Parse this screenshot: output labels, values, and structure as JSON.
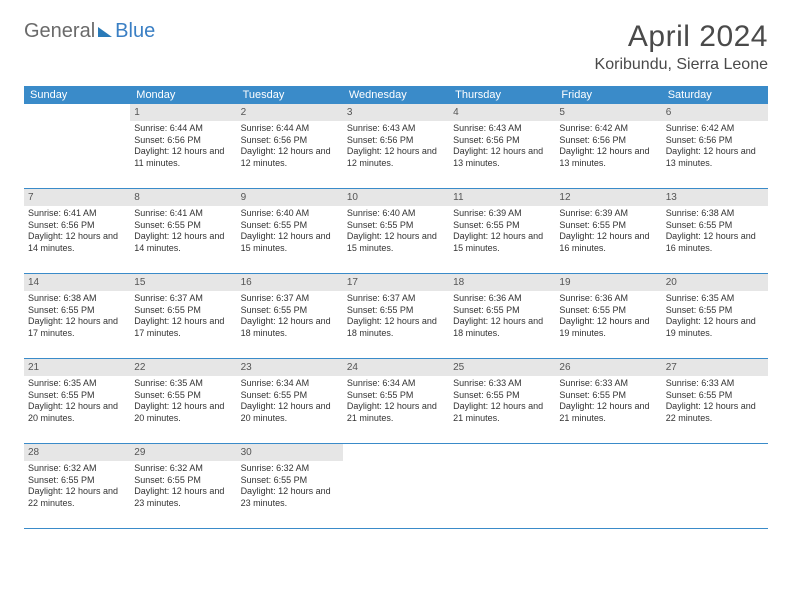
{
  "logo": {
    "text1": "General",
    "text2": "Blue"
  },
  "title": "April 2024",
  "location": "Koribundu, Sierra Leone",
  "colors": {
    "header_bg": "#3a8bc9",
    "header_text": "#ffffff",
    "daynum_bg": "#e6e6e6",
    "border": "#3a8bc9",
    "title_color": "#4a4a4a"
  },
  "weekdays": [
    "Sunday",
    "Monday",
    "Tuesday",
    "Wednesday",
    "Thursday",
    "Friday",
    "Saturday"
  ],
  "weeks": [
    [
      null,
      {
        "n": "1",
        "sr": "Sunrise: 6:44 AM",
        "ss": "Sunset: 6:56 PM",
        "dl": "Daylight: 12 hours and 11 minutes."
      },
      {
        "n": "2",
        "sr": "Sunrise: 6:44 AM",
        "ss": "Sunset: 6:56 PM",
        "dl": "Daylight: 12 hours and 12 minutes."
      },
      {
        "n": "3",
        "sr": "Sunrise: 6:43 AM",
        "ss": "Sunset: 6:56 PM",
        "dl": "Daylight: 12 hours and 12 minutes."
      },
      {
        "n": "4",
        "sr": "Sunrise: 6:43 AM",
        "ss": "Sunset: 6:56 PM",
        "dl": "Daylight: 12 hours and 13 minutes."
      },
      {
        "n": "5",
        "sr": "Sunrise: 6:42 AM",
        "ss": "Sunset: 6:56 PM",
        "dl": "Daylight: 12 hours and 13 minutes."
      },
      {
        "n": "6",
        "sr": "Sunrise: 6:42 AM",
        "ss": "Sunset: 6:56 PM",
        "dl": "Daylight: 12 hours and 13 minutes."
      }
    ],
    [
      {
        "n": "7",
        "sr": "Sunrise: 6:41 AM",
        "ss": "Sunset: 6:56 PM",
        "dl": "Daylight: 12 hours and 14 minutes."
      },
      {
        "n": "8",
        "sr": "Sunrise: 6:41 AM",
        "ss": "Sunset: 6:55 PM",
        "dl": "Daylight: 12 hours and 14 minutes."
      },
      {
        "n": "9",
        "sr": "Sunrise: 6:40 AM",
        "ss": "Sunset: 6:55 PM",
        "dl": "Daylight: 12 hours and 15 minutes."
      },
      {
        "n": "10",
        "sr": "Sunrise: 6:40 AM",
        "ss": "Sunset: 6:55 PM",
        "dl": "Daylight: 12 hours and 15 minutes."
      },
      {
        "n": "11",
        "sr": "Sunrise: 6:39 AM",
        "ss": "Sunset: 6:55 PM",
        "dl": "Daylight: 12 hours and 15 minutes."
      },
      {
        "n": "12",
        "sr": "Sunrise: 6:39 AM",
        "ss": "Sunset: 6:55 PM",
        "dl": "Daylight: 12 hours and 16 minutes."
      },
      {
        "n": "13",
        "sr": "Sunrise: 6:38 AM",
        "ss": "Sunset: 6:55 PM",
        "dl": "Daylight: 12 hours and 16 minutes."
      }
    ],
    [
      {
        "n": "14",
        "sr": "Sunrise: 6:38 AM",
        "ss": "Sunset: 6:55 PM",
        "dl": "Daylight: 12 hours and 17 minutes."
      },
      {
        "n": "15",
        "sr": "Sunrise: 6:37 AM",
        "ss": "Sunset: 6:55 PM",
        "dl": "Daylight: 12 hours and 17 minutes."
      },
      {
        "n": "16",
        "sr": "Sunrise: 6:37 AM",
        "ss": "Sunset: 6:55 PM",
        "dl": "Daylight: 12 hours and 18 minutes."
      },
      {
        "n": "17",
        "sr": "Sunrise: 6:37 AM",
        "ss": "Sunset: 6:55 PM",
        "dl": "Daylight: 12 hours and 18 minutes."
      },
      {
        "n": "18",
        "sr": "Sunrise: 6:36 AM",
        "ss": "Sunset: 6:55 PM",
        "dl": "Daylight: 12 hours and 18 minutes."
      },
      {
        "n": "19",
        "sr": "Sunrise: 6:36 AM",
        "ss": "Sunset: 6:55 PM",
        "dl": "Daylight: 12 hours and 19 minutes."
      },
      {
        "n": "20",
        "sr": "Sunrise: 6:35 AM",
        "ss": "Sunset: 6:55 PM",
        "dl": "Daylight: 12 hours and 19 minutes."
      }
    ],
    [
      {
        "n": "21",
        "sr": "Sunrise: 6:35 AM",
        "ss": "Sunset: 6:55 PM",
        "dl": "Daylight: 12 hours and 20 minutes."
      },
      {
        "n": "22",
        "sr": "Sunrise: 6:35 AM",
        "ss": "Sunset: 6:55 PM",
        "dl": "Daylight: 12 hours and 20 minutes."
      },
      {
        "n": "23",
        "sr": "Sunrise: 6:34 AM",
        "ss": "Sunset: 6:55 PM",
        "dl": "Daylight: 12 hours and 20 minutes."
      },
      {
        "n": "24",
        "sr": "Sunrise: 6:34 AM",
        "ss": "Sunset: 6:55 PM",
        "dl": "Daylight: 12 hours and 21 minutes."
      },
      {
        "n": "25",
        "sr": "Sunrise: 6:33 AM",
        "ss": "Sunset: 6:55 PM",
        "dl": "Daylight: 12 hours and 21 minutes."
      },
      {
        "n": "26",
        "sr": "Sunrise: 6:33 AM",
        "ss": "Sunset: 6:55 PM",
        "dl": "Daylight: 12 hours and 21 minutes."
      },
      {
        "n": "27",
        "sr": "Sunrise: 6:33 AM",
        "ss": "Sunset: 6:55 PM",
        "dl": "Daylight: 12 hours and 22 minutes."
      }
    ],
    [
      {
        "n": "28",
        "sr": "Sunrise: 6:32 AM",
        "ss": "Sunset: 6:55 PM",
        "dl": "Daylight: 12 hours and 22 minutes."
      },
      {
        "n": "29",
        "sr": "Sunrise: 6:32 AM",
        "ss": "Sunset: 6:55 PM",
        "dl": "Daylight: 12 hours and 23 minutes."
      },
      {
        "n": "30",
        "sr": "Sunrise: 6:32 AM",
        "ss": "Sunset: 6:55 PM",
        "dl": "Daylight: 12 hours and 23 minutes."
      },
      null,
      null,
      null,
      null
    ]
  ]
}
